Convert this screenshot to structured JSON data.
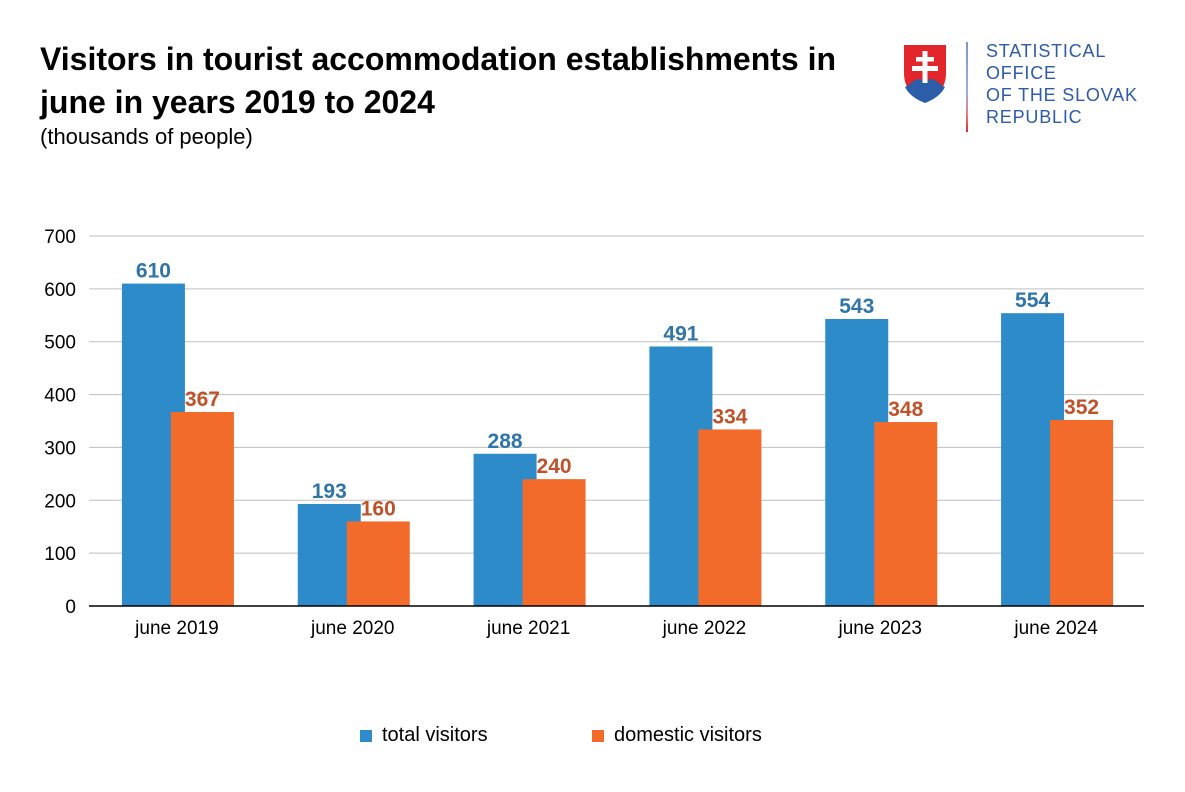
{
  "header": {
    "title": "Visitors in tourist accommodation establishments in june in years 2019 to 2024",
    "subtitle": "(thousands of people)"
  },
  "logo": {
    "icon": "slovak-coat-of-arms-icon",
    "lines": [
      "STATISTICAL",
      "OFFICE",
      "OF THE SLOVAK",
      "REPUBLIC"
    ],
    "text_color": "#2d5ba8"
  },
  "chart_data": {
    "type": "bar",
    "title": "Visitors in tourist accommodation establishments in june in years 2019 to 2024",
    "subtitle": "(thousands of people)",
    "categories": [
      "june 2019",
      "june 2020",
      "june 2021",
      "june 2022",
      "june 2023",
      "june 2024"
    ],
    "series": [
      {
        "name": "total visitors",
        "color": "#2e8bc9",
        "label_color": "#2f75a8",
        "values": [
          610,
          193,
          288,
          491,
          543,
          554
        ]
      },
      {
        "name": "domestic visitors",
        "color": "#f26b2a",
        "label_color": "#c0522a",
        "values": [
          367,
          160,
          240,
          334,
          348,
          352
        ]
      }
    ],
    "ylim": [
      0,
      700
    ],
    "yticks": [
      0,
      100,
      200,
      300,
      400,
      500,
      600,
      700
    ],
    "xlabel": "",
    "ylabel": "",
    "grid": true,
    "legend_position": "bottom"
  }
}
